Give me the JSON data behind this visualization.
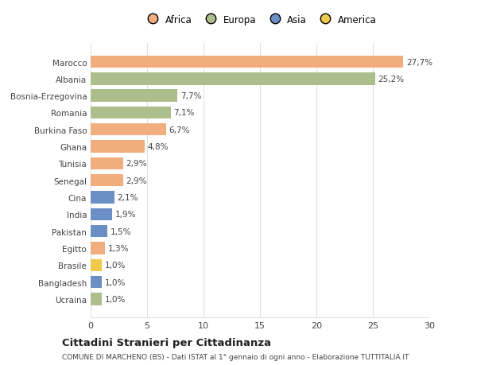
{
  "countries": [
    "Marocco",
    "Albania",
    "Bosnia-Erzegovina",
    "Romania",
    "Burkina Faso",
    "Ghana",
    "Tunisia",
    "Senegal",
    "Cina",
    "India",
    "Pakistan",
    "Egitto",
    "Brasile",
    "Bangladesh",
    "Ucraina"
  ],
  "values": [
    27.7,
    25.2,
    7.7,
    7.1,
    6.7,
    4.8,
    2.9,
    2.9,
    2.1,
    1.9,
    1.5,
    1.3,
    1.0,
    1.0,
    1.0
  ],
  "labels": [
    "27,7%",
    "25,2%",
    "7,7%",
    "7,1%",
    "6,7%",
    "4,8%",
    "2,9%",
    "2,9%",
    "2,1%",
    "1,9%",
    "1,5%",
    "1,3%",
    "1,0%",
    "1,0%",
    "1,0%"
  ],
  "continents": [
    "Africa",
    "Europa",
    "Europa",
    "Europa",
    "Africa",
    "Africa",
    "Africa",
    "Africa",
    "Asia",
    "Asia",
    "Asia",
    "Africa",
    "America",
    "Asia",
    "Europa"
  ],
  "colors": {
    "Africa": "#F2AD7E",
    "Europa": "#ABBE8B",
    "Asia": "#6B8EC4",
    "America": "#F0C84A"
  },
  "legend_order": [
    "Africa",
    "Europa",
    "Asia",
    "America"
  ],
  "xlim": [
    0,
    30
  ],
  "xticks": [
    0,
    5,
    10,
    15,
    20,
    25,
    30
  ],
  "title": "Cittadini Stranieri per Cittadinanza",
  "subtitle": "COMUNE DI MARCHENO (BS) - Dati ISTAT al 1° gennaio di ogni anno - Elaborazione TUTTITALIA.IT",
  "bg_color": "#ffffff",
  "bar_height": 0.72,
  "grid_color": "#e0e0e0",
  "text_color": "#444444"
}
